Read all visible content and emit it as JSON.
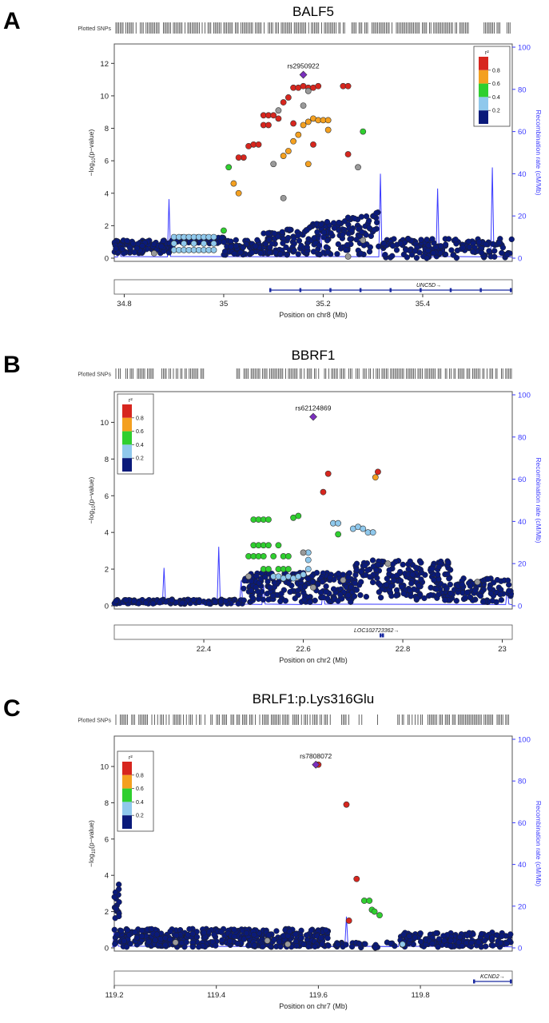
{
  "figure": {
    "panels": [
      {
        "letter": "A",
        "title": "BALF5",
        "plotted_snps_label": "Plotted SNPs",
        "lead_snp": "rs2950922",
        "xlabel": "Position on chr8 (Mb)",
        "ylabel": "-log10(p-value)",
        "y2label": "Recombination rate (cM/Mb)",
        "gene": "UNC5D",
        "legend_title": "r²",
        "legend_labels": [
          "0.8",
          "0.6",
          "0.4",
          "0.2"
        ]
      },
      {
        "letter": "B",
        "title": "BBRF1",
        "plotted_snps_label": "Plotted SNPs",
        "lead_snp": "rs62124869",
        "xlabel": "Position on chr2 (Mb)",
        "ylabel": "-log10(p-value)",
        "y2label": "Recombination rate (cM/Mb)",
        "gene": "LOC102723362",
        "legend_title": "r²",
        "legend_labels": [
          "0.8",
          "0.6",
          "0.4",
          "0.2"
        ]
      },
      {
        "letter": "C",
        "title": "BRLF1:p.Lys316Glu",
        "plotted_snps_label": "Plotted SNPs",
        "lead_snp": "rs7808072",
        "xlabel": "Position on chr7 (Mb)",
        "ylabel": "-log10(p-value)",
        "y2label": "Recombination rate (cM/Mb)",
        "gene": "KCND2",
        "legend_title": "r²",
        "legend_labels": [
          "0.8",
          "0.6",
          "0.4",
          "0.2"
        ]
      }
    ]
  },
  "colors": {
    "lead": "#7b2fbe",
    "r2_0.8": "#d7261e",
    "r2_0.6": "#f4a020",
    "r2_0.4": "#2fcf2f",
    "r2_0.2": "#8fc8ec",
    "r2_0.0": "#0a1a7a",
    "missing": "#9a9a9a",
    "recomb": "#3a3aff",
    "axis2": "#3a3aff"
  },
  "chart_data": [
    {
      "type": "scatter",
      "title": "BALF5",
      "xlabel": "Position on chr8 (Mb)",
      "ylabel": "-log10(p-value)",
      "y2label": "Recombination rate (cM/Mb)",
      "xlim": [
        34.78,
        35.58
      ],
      "ylim": [
        0,
        13
      ],
      "y2lim": [
        0,
        100
      ],
      "x_ticks": [
        34.8,
        35,
        35.2,
        35.4
      ],
      "y_ticks": [
        0,
        2,
        4,
        6,
        8,
        10,
        12
      ],
      "y2_ticks": [
        0,
        20,
        40,
        60,
        80,
        100
      ],
      "legend_position": "top-right",
      "lead_snp": {
        "name": "rs2950922",
        "x": 35.16,
        "y": 11.3
      },
      "series": [
        {
          "name": "r² 0.8-1.0",
          "color_key": "r2_0.8",
          "points": [
            [
              35.05,
              6.9
            ],
            [
              35.06,
              7.0
            ],
            [
              35.07,
              7.0
            ],
            [
              35.08,
              8.8
            ],
            [
              35.09,
              8.8
            ],
            [
              35.1,
              8.8
            ],
            [
              35.11,
              8.6
            ],
            [
              35.12,
              9.6
            ],
            [
              35.13,
              9.9
            ],
            [
              35.14,
              10.5
            ],
            [
              35.15,
              10.5
            ],
            [
              35.16,
              10.6
            ],
            [
              35.17,
              10.5
            ],
            [
              35.18,
              10.5
            ],
            [
              35.19,
              10.6
            ],
            [
              35.24,
              10.6
            ],
            [
              35.25,
              10.6
            ],
            [
              35.08,
              8.2
            ],
            [
              35.09,
              8.2
            ],
            [
              35.04,
              6.2
            ],
            [
              35.03,
              6.2
            ],
            [
              35.18,
              7.0
            ],
            [
              35.25,
              6.4
            ],
            [
              35.14,
              8.3
            ]
          ]
        },
        {
          "name": "r² 0.6-0.8",
          "color_key": "r2_0.6",
          "points": [
            [
              35.12,
              6.3
            ],
            [
              35.13,
              6.6
            ],
            [
              35.14,
              7.2
            ],
            [
              35.15,
              7.6
            ],
            [
              35.16,
              8.2
            ],
            [
              35.17,
              8.4
            ],
            [
              35.18,
              8.6
            ],
            [
              35.19,
              8.5
            ],
            [
              35.2,
              8.5
            ],
            [
              35.21,
              8.5
            ],
            [
              35.21,
              7.9
            ],
            [
              35.17,
              5.8
            ],
            [
              35.02,
              4.6
            ],
            [
              35.03,
              4.0
            ]
          ]
        },
        {
          "name": "r² 0.4-0.6",
          "color_key": "r2_0.4",
          "points": [
            [
              35.0,
              1.7
            ],
            [
              35.01,
              5.6
            ],
            [
              35.28,
              7.8
            ]
          ]
        },
        {
          "name": "r² 0.2-0.4",
          "color_key": "r2_0.2",
          "points": [
            [
              34.9,
              1.3
            ],
            [
              34.91,
              1.3
            ],
            [
              34.92,
              1.3
            ],
            [
              34.93,
              1.3
            ],
            [
              34.94,
              1.3
            ],
            [
              34.95,
              1.3
            ],
            [
              34.96,
              1.3
            ],
            [
              34.97,
              1.3
            ],
            [
              34.98,
              1.3
            ],
            [
              34.9,
              0.5
            ],
            [
              34.91,
              0.5
            ],
            [
              34.92,
              0.5
            ],
            [
              34.93,
              0.5
            ],
            [
              34.94,
              0.5
            ],
            [
              34.95,
              0.5
            ],
            [
              34.96,
              0.5
            ],
            [
              34.97,
              0.5
            ],
            [
              34.98,
              0.5
            ],
            [
              34.9,
              0.9
            ],
            [
              34.92,
              0.9
            ],
            [
              34.94,
              0.9
            ],
            [
              34.96,
              0.9
            ],
            [
              34.98,
              0.9
            ]
          ]
        },
        {
          "name": "no r²",
          "color_key": "missing",
          "points": [
            [
              35.12,
              3.7
            ],
            [
              35.1,
              5.8
            ],
            [
              35.27,
              5.6
            ],
            [
              35.16,
              9.4
            ],
            [
              35.11,
              9.1
            ],
            [
              35.17,
              10.3
            ],
            [
              35.25,
              0.1
            ],
            [
              35.28,
              1.1
            ],
            [
              34.86,
              0.3
            ]
          ]
        }
      ],
      "recombination_peaks": [
        [
          34.79,
          9
        ],
        [
          34.89,
          28
        ],
        [
          35.195,
          14
        ],
        [
          35.315,
          40
        ],
        [
          35.43,
          33
        ],
        [
          35.54,
          43
        ]
      ]
    },
    {
      "type": "scatter",
      "title": "BBRF1",
      "xlabel": "Position on chr2 (Mb)",
      "ylabel": "-log10(p-value)",
      "y2label": "Recombination rate (cM/Mb)",
      "xlim": [
        22.22,
        23.02
      ],
      "ylim": [
        0,
        11.5
      ],
      "y2lim": [
        0,
        100
      ],
      "x_ticks": [
        22.4,
        22.6,
        22.8,
        23
      ],
      "y_ticks": [
        0,
        2,
        4,
        6,
        8,
        10
      ],
      "y2_ticks": [
        0,
        20,
        40,
        60,
        80,
        100
      ],
      "legend_position": "top-left",
      "lead_snp": {
        "name": "rs62124869",
        "x": 22.62,
        "y": 10.3
      },
      "series": [
        {
          "name": "r² 0.8-1.0",
          "color_key": "r2_0.8",
          "points": [
            [
              22.64,
              6.2
            ],
            [
              22.65,
              7.2
            ],
            [
              22.75,
              7.3
            ]
          ]
        },
        {
          "name": "r² 0.6-0.8",
          "color_key": "r2_0.6",
          "points": [
            [
              22.745,
              7.0
            ]
          ]
        },
        {
          "name": "r² 0.4-0.6",
          "color_key": "r2_0.4",
          "points": [
            [
              22.5,
              4.7
            ],
            [
              22.51,
              4.7
            ],
            [
              22.52,
              4.7
            ],
            [
              22.53,
              4.7
            ],
            [
              22.58,
              4.8
            ],
            [
              22.59,
              4.9
            ],
            [
              22.5,
              3.3
            ],
            [
              22.51,
              3.3
            ],
            [
              22.52,
              3.3
            ],
            [
              22.53,
              3.3
            ],
            [
              22.49,
              2.7
            ],
            [
              22.5,
              2.7
            ],
            [
              22.51,
              2.7
            ],
            [
              22.52,
              2.7
            ],
            [
              22.54,
              2.7
            ],
            [
              22.56,
              2.7
            ],
            [
              22.57,
              2.7
            ],
            [
              22.52,
              2.0
            ],
            [
              22.53,
              2.0
            ],
            [
              22.55,
              2.0
            ],
            [
              22.56,
              2.0
            ],
            [
              22.57,
              2.0
            ],
            [
              22.55,
              3.3
            ],
            [
              22.67,
              3.9
            ]
          ]
        },
        {
          "name": "r² 0.2-0.4",
          "color_key": "r2_0.2",
          "points": [
            [
              22.54,
              1.6
            ],
            [
              22.55,
              1.6
            ],
            [
              22.56,
              1.5
            ],
            [
              22.57,
              1.6
            ],
            [
              22.58,
              1.5
            ],
            [
              22.59,
              1.6
            ],
            [
              22.6,
              1.7
            ],
            [
              22.61,
              2.0
            ],
            [
              22.61,
              2.5
            ],
            [
              22.61,
              2.9
            ],
            [
              22.66,
              4.5
            ],
            [
              22.67,
              4.5
            ],
            [
              22.7,
              4.2
            ],
            [
              22.71,
              4.3
            ],
            [
              22.72,
              4.2
            ],
            [
              22.73,
              4.0
            ],
            [
              22.74,
              4.0
            ]
          ]
        },
        {
          "name": "no r²",
          "color_key": "missing",
          "points": [
            [
              22.49,
              1.6
            ],
            [
              22.6,
              2.9
            ],
            [
              22.62,
              1.0
            ],
            [
              22.68,
              1.4
            ],
            [
              22.77,
              2.3
            ],
            [
              22.95,
              1.3
            ]
          ]
        }
      ],
      "recombination_peaks": [
        [
          22.32,
          18
        ],
        [
          22.43,
          28
        ],
        [
          22.475,
          12
        ],
        [
          22.52,
          10
        ],
        [
          22.6,
          9
        ],
        [
          22.64,
          8
        ],
        [
          23.01,
          8
        ]
      ]
    },
    {
      "type": "scatter",
      "title": "BRLF1:p.Lys316Glu",
      "xlabel": "Position on chr7 (Mb)",
      "ylabel": "-log10(p-value)",
      "y2label": "Recombination rate (cM/Mb)",
      "xlim": [
        119.2,
        119.98
      ],
      "ylim": [
        0,
        11.5
      ],
      "y2lim": [
        0,
        100
      ],
      "x_ticks": [
        119.2,
        119.4,
        119.6,
        119.8
      ],
      "y_ticks": [
        0,
        2,
        4,
        6,
        8,
        10
      ],
      "y2_ticks": [
        0,
        20,
        40,
        60,
        80,
        100
      ],
      "legend_position": "top-left",
      "lead_snp": {
        "name": "rs7808072",
        "x": 119.595,
        "y": 10.1
      },
      "series": [
        {
          "name": "r² 0.8-1.0",
          "color_key": "r2_0.8",
          "points": [
            [
              119.6,
              10.1
            ],
            [
              119.655,
              7.9
            ],
            [
              119.675,
              3.8
            ],
            [
              119.66,
              1.5
            ]
          ]
        },
        {
          "name": "r² 0.6-0.8",
          "color_key": "r2_0.6",
          "points": []
        },
        {
          "name": "r² 0.4-0.6",
          "color_key": "r2_0.4",
          "points": [
            [
              119.69,
              2.6
            ],
            [
              119.7,
              2.6
            ],
            [
              119.705,
              2.1
            ],
            [
              119.71,
              2.0
            ],
            [
              119.72,
              1.8
            ]
          ]
        },
        {
          "name": "r² 0.2-0.4",
          "color_key": "r2_0.2",
          "points": [
            [
              119.765,
              0.2
            ]
          ]
        },
        {
          "name": "no r²",
          "color_key": "missing",
          "points": [
            [
              119.32,
              0.3
            ],
            [
              119.5,
              0.4
            ],
            [
              119.54,
              0.2
            ]
          ]
        }
      ],
      "recombination_peaks": [
        [
          119.2,
          8
        ],
        [
          119.205,
          6
        ],
        [
          119.655,
          15
        ],
        [
          119.76,
          5
        ]
      ]
    }
  ]
}
